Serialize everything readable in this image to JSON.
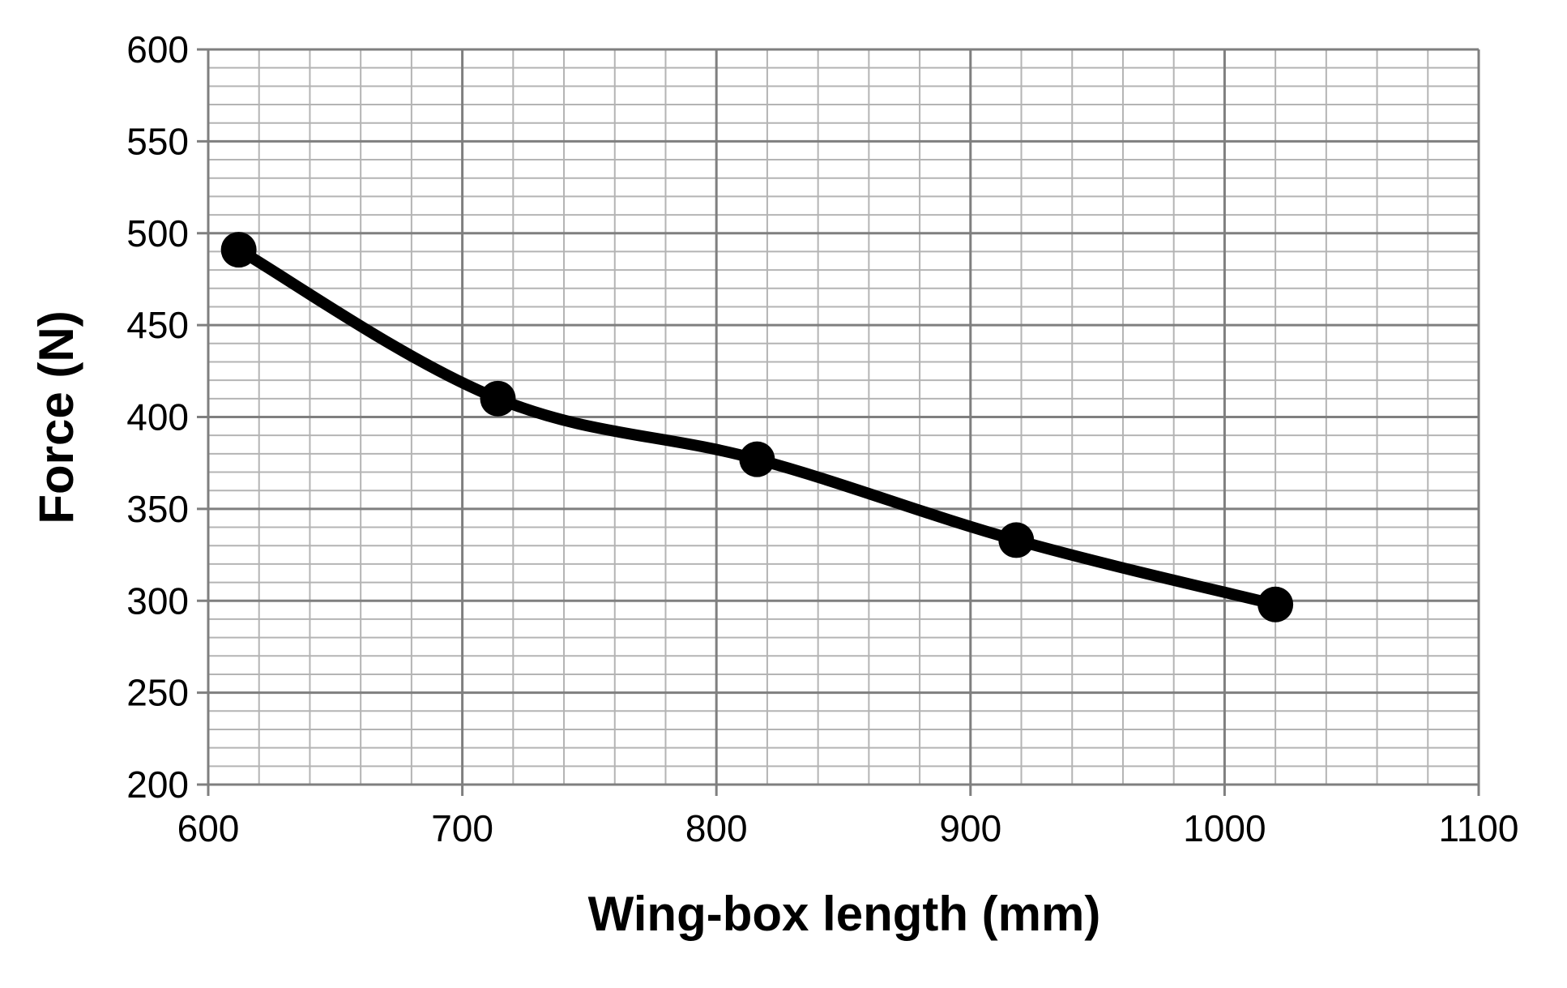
{
  "chart_data": {
    "type": "line",
    "title": "",
    "xlabel": "Wing-box length (mm)",
    "ylabel": "Force (N)",
    "xlim": [
      600,
      1100
    ],
    "ylim": [
      200,
      600
    ],
    "x_ticks": [
      600,
      700,
      800,
      900,
      1000,
      1100
    ],
    "y_ticks": [
      200,
      250,
      300,
      350,
      400,
      450,
      500,
      550,
      600
    ],
    "x_major_step": 100,
    "x_minor_step": 20,
    "y_major_step": 50,
    "y_minor_step": 10,
    "grid": true,
    "legend": "none",
    "colors": {
      "line": "#000000",
      "marker": "#000000",
      "major_grid": "#7f7f7f",
      "minor_grid": "#b4b4b4",
      "axis": "#7f7f7f"
    },
    "series": [
      {
        "x": [
          612,
          714,
          816,
          918,
          1020
        ],
        "y": [
          491,
          410,
          377,
          333,
          298
        ]
      }
    ]
  }
}
